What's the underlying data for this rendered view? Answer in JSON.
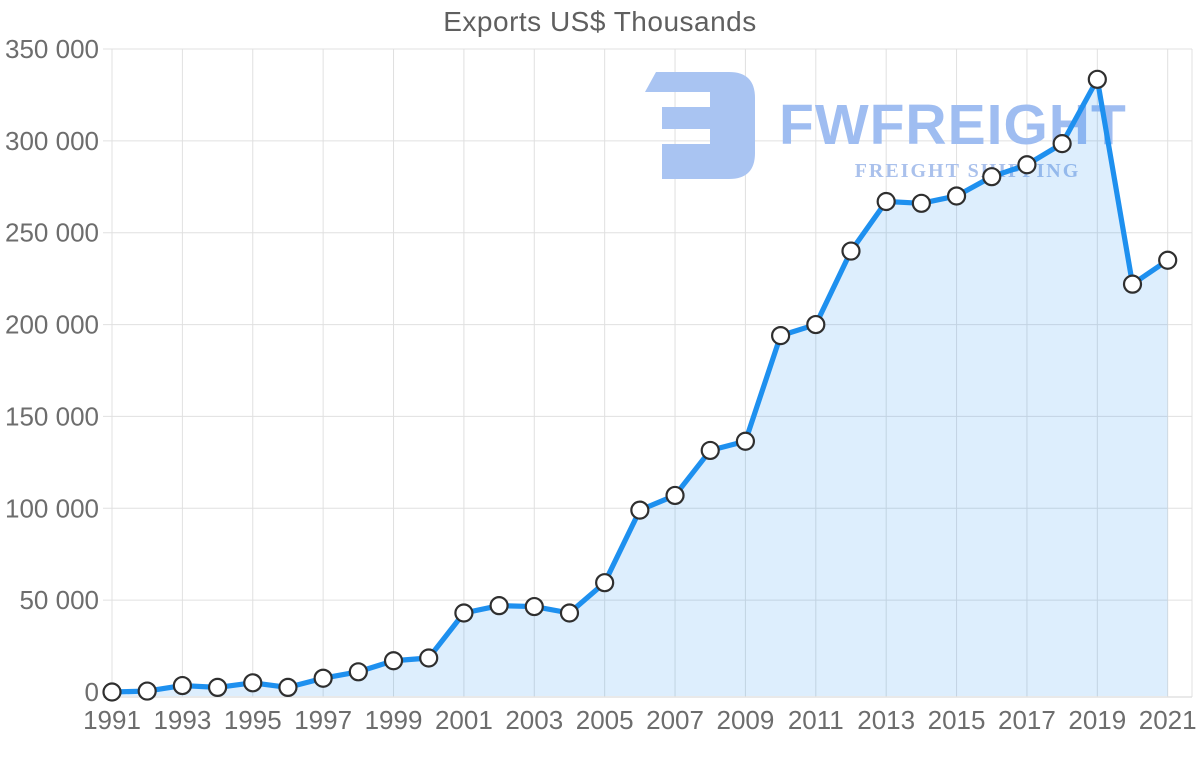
{
  "title": "Exports US$ Thousands",
  "watermark": {
    "brand": "FWFREIGHT",
    "tagline": "FREIGHT SHIPPING",
    "logo_color": "#a9c4f2",
    "brand_color": "#9fbdf1",
    "tagline_color": "#aac1ec"
  },
  "colors": {
    "line": "#1e90ef",
    "area_fill": "rgba(30,144,239,0.15)",
    "marker_fill": "#ffffff",
    "marker_stroke": "#2f2f2f",
    "grid": "#e0e0e0",
    "border": "#dcdcdc",
    "axis_text": "#6d6d6d",
    "title_text": "#5f5f5f"
  },
  "chart_data": {
    "type": "area",
    "title": "Exports US$ Thousands",
    "x": [
      1991,
      1992,
      1993,
      1994,
      1995,
      1996,
      1997,
      1998,
      1999,
      2000,
      2001,
      2002,
      2003,
      2004,
      2005,
      2006,
      2007,
      2008,
      2009,
      2010,
      2011,
      2012,
      2013,
      2014,
      2015,
      2016,
      2017,
      2018,
      2019,
      2020,
      2021
    ],
    "values": [
      0,
      500,
      3500,
      2500,
      5000,
      2500,
      7500,
      11000,
      17000,
      18500,
      43000,
      47000,
      46500,
      43000,
      59500,
      99000,
      107000,
      131500,
      136500,
      194000,
      200000,
      240000,
      267000,
      266000,
      270000,
      280500,
      287000,
      298500,
      333500,
      222000,
      235000
    ],
    "xlabel": "",
    "ylabel": "",
    "ylim": [
      0,
      350000
    ],
    "y_ticks": [
      0,
      50000,
      100000,
      150000,
      200000,
      250000,
      300000,
      350000
    ],
    "y_tick_labels": [
      "0",
      "50 000",
      "100 000",
      "150 000",
      "200 000",
      "250 000",
      "300 000",
      "350 000"
    ],
    "x_tick_labels": [
      "1991",
      "1993",
      "1995",
      "1997",
      "1999",
      "2001",
      "2003",
      "2005",
      "2007",
      "2009",
      "2011",
      "2013",
      "2015",
      "2017",
      "2019",
      "2021"
    ],
    "grid": true,
    "legend": false,
    "marker": "circle"
  }
}
